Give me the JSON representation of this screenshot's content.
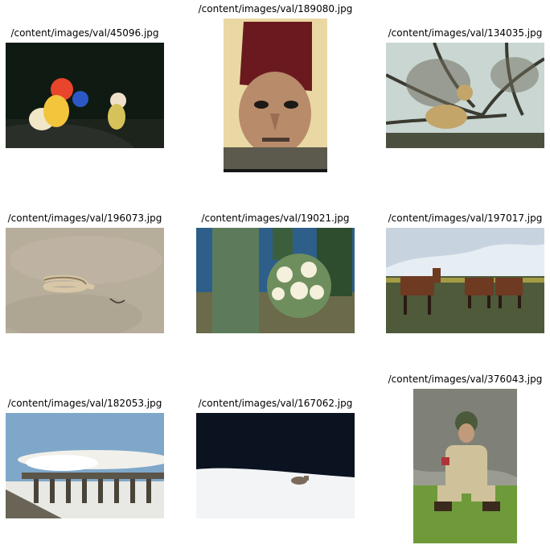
{
  "images": [
    {
      "title": "/content/images/val/45096.jpg",
      "subject": "underwater diver with colorful equipment",
      "palette": [
        "#0f1a12",
        "#e8452c",
        "#f2c53d"
      ]
    },
    {
      "title": "/content/images/val/189080.jpg",
      "subject": "elderly man wearing a fez",
      "palette": [
        "#ead8a4",
        "#6a1a1e",
        "#b88b6a"
      ]
    },
    {
      "title": "/content/images/val/134035.jpg",
      "subject": "leopard resting in bare tree",
      "palette": [
        "#c9d6d2",
        "#3a3a30",
        "#c3a56a"
      ]
    },
    {
      "title": "/content/images/val/196073.jpg",
      "subject": "snake on sand",
      "palette": [
        "#b7ad9b",
        "#9e9584",
        "#d8c7a6"
      ]
    },
    {
      "title": "/content/images/val/19021.jpg",
      "subject": "saguaro cactus with flowers",
      "palette": [
        "#5d7b5a",
        "#2e4c2e",
        "#f4f0dc"
      ]
    },
    {
      "title": "/content/images/val/197017.jpg",
      "subject": "three horses in a field",
      "palette": [
        "#c7d4e0",
        "#4e5a3a",
        "#6e3a22"
      ]
    },
    {
      "title": "/content/images/val/182053.jpg",
      "subject": "steam train crossing a viaduct in snow",
      "palette": [
        "#7fa7c9",
        "#f1f0ea",
        "#5b5448"
      ]
    },
    {
      "title": "/content/images/val/167062.jpg",
      "subject": "coyote in snow at forest edge",
      "palette": [
        "#0b1220",
        "#f3f4f6",
        "#7a6a5a"
      ]
    },
    {
      "title": "/content/images/val/376043.jpg",
      "subject": "soldier crouching in front of rocks",
      "palette": [
        "#9a9c92",
        "#cfc29a",
        "#6f9a3a"
      ]
    }
  ]
}
